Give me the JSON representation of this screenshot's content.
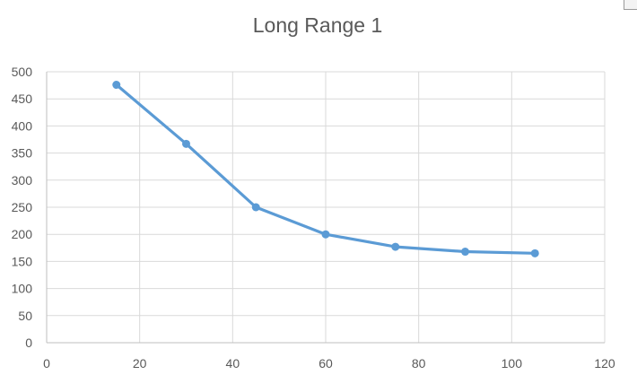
{
  "chart_data": {
    "type": "line",
    "title": "Long Range 1",
    "xlabel": "",
    "ylabel": "",
    "xlim": [
      0,
      120
    ],
    "ylim": [
      0,
      500
    ],
    "x_ticks": [
      0,
      20,
      40,
      60,
      80,
      100,
      120
    ],
    "y_ticks": [
      0,
      50,
      100,
      150,
      200,
      250,
      300,
      350,
      400,
      450,
      500
    ],
    "grid": true,
    "legend": "none",
    "series": [
      {
        "color": "#5b9bd5",
        "x": [
          15,
          30,
          45,
          60,
          75,
          90,
          105
        ],
        "y": [
          476,
          367,
          250,
          200,
          177,
          168,
          165
        ]
      }
    ]
  }
}
